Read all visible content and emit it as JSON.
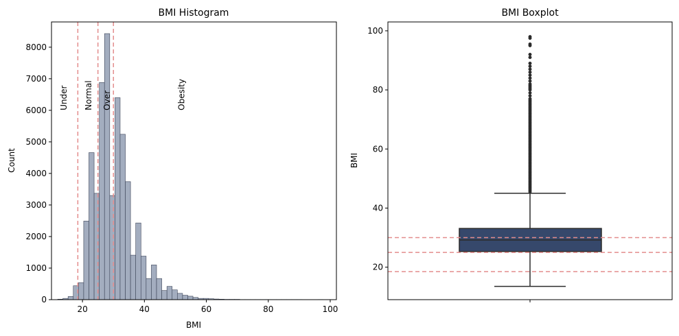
{
  "chart_data": [
    {
      "type": "bar",
      "title": "BMI Histogram",
      "xlabel": "BMI",
      "ylabel": "Count",
      "xlim": [
        10,
        102
      ],
      "ylim": [
        0,
        8800
      ],
      "xticks": [
        20,
        40,
        60,
        80,
        100
      ],
      "yticks": [
        0,
        1000,
        2000,
        3000,
        4000,
        5000,
        6000,
        7000,
        8000
      ],
      "bin_width": 1.68,
      "bin_starts": [
        12.0,
        13.68,
        15.36,
        17.04,
        18.72,
        20.4,
        22.08,
        23.76,
        25.44,
        27.12,
        28.8,
        30.48,
        32.16,
        33.84,
        35.52,
        37.2,
        38.88,
        40.56,
        42.24,
        43.92,
        45.6,
        47.28,
        48.96,
        50.64,
        52.32,
        54.0,
        55.68,
        57.36,
        59.04,
        60.72,
        62.4,
        64.08,
        65.76,
        67.44,
        69.12,
        70.8,
        72.48,
        74.16,
        75.84,
        77.52,
        79.2,
        80.88,
        82.56,
        84.24,
        85.92,
        87.6,
        89.28,
        90.96,
        92.64,
        94.32,
        96.0
      ],
      "values": [
        15,
        40,
        100,
        440,
        540,
        2490,
        4660,
        3370,
        6880,
        8430,
        3300,
        6400,
        5240,
        3740,
        1410,
        2430,
        1380,
        670,
        1100,
        670,
        290,
        420,
        310,
        200,
        140,
        110,
        70,
        40,
        40,
        30,
        20,
        15,
        10,
        10,
        10,
        5,
        5,
        5,
        5,
        5,
        5,
        5,
        5,
        5,
        5,
        5,
        5,
        0,
        0,
        0,
        5
      ],
      "reference_lines": [
        {
          "x": 18.5,
          "label": "Under"
        },
        {
          "x": 25,
          "label": "Normal"
        },
        {
          "x": 30,
          "label": "Over"
        }
      ],
      "annotations": [
        {
          "label": "Under",
          "x": 14,
          "y": 6000
        },
        {
          "label": "Normal",
          "x": 22,
          "y": 6000
        },
        {
          "label": "Over",
          "x": 28,
          "y": 6000
        },
        {
          "label": "Obesity",
          "x": 52,
          "y": 6000
        }
      ],
      "colors": {
        "bar_fill": "#a3adbf",
        "bar_edge": "#3a4256",
        "reference_line": "#e38c8c"
      }
    },
    {
      "type": "boxplot",
      "title": "BMI Boxplot",
      "ylabel": "BMI",
      "ylim": [
        9,
        103
      ],
      "yticks": [
        20,
        40,
        60,
        80,
        100
      ],
      "box": {
        "whisker_low": 13.5,
        "q1": 25.3,
        "median": 29.2,
        "q3": 33.1,
        "whisker_high": 45.0
      },
      "outliers": [
        45.5,
        46,
        46.5,
        47,
        47.5,
        48,
        48.5,
        49,
        49.5,
        50,
        50.5,
        51,
        51.5,
        52,
        52.5,
        53,
        53.5,
        54,
        54.5,
        55,
        55.5,
        56,
        56.5,
        57,
        57.5,
        58,
        58.5,
        59,
        59.5,
        60,
        60.5,
        61,
        61.5,
        62,
        62.5,
        63,
        63.5,
        64,
        64.5,
        65,
        65.5,
        66,
        66.5,
        67,
        67.5,
        68,
        68.5,
        69,
        69.5,
        70,
        70.5,
        71,
        71.5,
        72,
        72.5,
        73,
        73.5,
        74,
        74.5,
        75,
        75.5,
        76,
        76.5,
        77,
        78,
        79,
        80,
        80.5,
        81,
        81.5,
        82,
        83,
        84,
        85,
        86,
        87,
        88,
        89,
        91,
        92,
        95,
        95.5,
        97.5,
        98
      ],
      "reference_lines": [
        18.5,
        25,
        30
      ],
      "colors": {
        "box_fill": "#36486b",
        "box_edge": "#2b2b2b",
        "reference_line": "#e38c8c"
      }
    }
  ]
}
